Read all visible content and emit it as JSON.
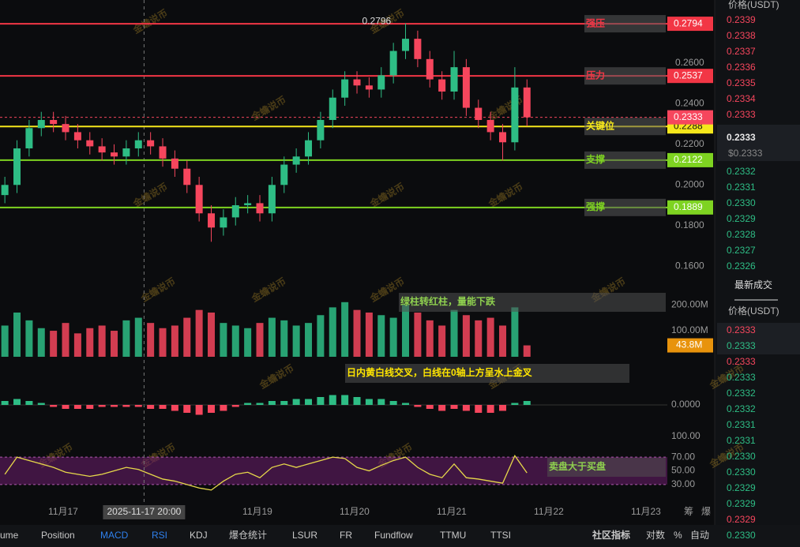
{
  "chart_data": [
    {
      "type": "candlestick",
      "x": [
        16.4,
        16.525,
        16.65,
        16.775,
        16.9,
        17.025,
        17.15,
        17.275,
        17.4,
        17.525,
        17.65,
        17.775,
        17.9,
        18.025,
        18.15,
        18.275,
        18.4,
        18.525,
        18.65,
        18.775,
        18.9,
        19.025,
        19.15,
        19.275,
        19.4,
        19.525,
        19.65,
        19.775,
        19.9,
        20.025,
        20.15,
        20.275,
        20.4,
        20.525,
        20.65,
        20.775,
        20.9,
        21.025,
        21.15,
        21.275,
        21.4,
        21.525,
        21.65,
        21.775
      ],
      "open": [
        0.195,
        0.2,
        0.218,
        0.228,
        0.232,
        0.23,
        0.226,
        0.222,
        0.219,
        0.216,
        0.214,
        0.218,
        0.222,
        0.219,
        0.213,
        0.208,
        0.2,
        0.186,
        0.179,
        0.184,
        0.19,
        0.191,
        0.186,
        0.2,
        0.21,
        0.214,
        0.222,
        0.232,
        0.243,
        0.252,
        0.249,
        0.247,
        0.254,
        0.266,
        0.272,
        0.262,
        0.252,
        0.246,
        0.258,
        0.238,
        0.232,
        0.226,
        0.221,
        0.248
      ],
      "high": [
        0.204,
        0.222,
        0.232,
        0.236,
        0.236,
        0.234,
        0.23,
        0.226,
        0.223,
        0.22,
        0.222,
        0.226,
        0.226,
        0.223,
        0.217,
        0.212,
        0.204,
        0.19,
        0.188,
        0.194,
        0.195,
        0.195,
        0.204,
        0.214,
        0.218,
        0.226,
        0.236,
        0.247,
        0.256,
        0.256,
        0.253,
        0.258,
        0.27,
        0.2796,
        0.276,
        0.266,
        0.256,
        0.266,
        0.262,
        0.242,
        0.236,
        0.23,
        0.258,
        0.252
      ],
      "low": [
        0.191,
        0.196,
        0.214,
        0.224,
        0.226,
        0.222,
        0.218,
        0.215,
        0.212,
        0.21,
        0.21,
        0.214,
        0.215,
        0.209,
        0.204,
        0.196,
        0.182,
        0.172,
        0.175,
        0.18,
        0.186,
        0.182,
        0.182,
        0.196,
        0.206,
        0.21,
        0.218,
        0.228,
        0.239,
        0.245,
        0.243,
        0.243,
        0.25,
        0.262,
        0.258,
        0.248,
        0.242,
        0.242,
        0.234,
        0.228,
        0.222,
        0.212,
        0.217,
        0.229
      ],
      "close": [
        0.2,
        0.218,
        0.228,
        0.232,
        0.23,
        0.226,
        0.222,
        0.219,
        0.216,
        0.214,
        0.218,
        0.222,
        0.219,
        0.213,
        0.208,
        0.2,
        0.186,
        0.179,
        0.184,
        0.19,
        0.191,
        0.186,
        0.2,
        0.21,
        0.214,
        0.222,
        0.232,
        0.243,
        0.252,
        0.249,
        0.247,
        0.254,
        0.266,
        0.272,
        0.262,
        0.252,
        0.246,
        0.258,
        0.238,
        0.232,
        0.226,
        0.221,
        0.248,
        0.2333
      ],
      "up_color": "#2ebd85",
      "down_color": "#f6465d",
      "xlim": [
        16.35,
        23.22
      ],
      "xticks": [
        {
          "value": 17,
          "label": "11月17"
        },
        {
          "value": 19,
          "label": "11月19"
        },
        {
          "value": 20,
          "label": "11月20"
        },
        {
          "value": 21,
          "label": "11月21"
        },
        {
          "value": 22,
          "label": "11月22"
        },
        {
          "value": 23,
          "label": "11月23"
        }
      ],
      "ylim": [
        0.155,
        0.2911
      ],
      "yticks": [
        {
          "value": 0.26,
          "label": "0.2600"
        },
        {
          "value": 0.24,
          "label": "0.2400"
        },
        {
          "value": 0.22,
          "label": "0.2200"
        },
        {
          "value": 0.2,
          "label": "0.2000"
        },
        {
          "value": 0.18,
          "label": "0.1800"
        },
        {
          "value": 0.16,
          "label": "0.1600"
        }
      ],
      "levels": [
        {
          "name": "强压",
          "value": 0.2794,
          "color": "#f23645"
        },
        {
          "name": "压力",
          "value": 0.2537,
          "color": "#f23645"
        },
        {
          "name": "关键位",
          "value": 0.2288,
          "color": "#f5e71b"
        },
        {
          "name": "支撑",
          "value": 0.2122,
          "color": "#7ed321"
        },
        {
          "name": "强撑",
          "value": 0.1889,
          "color": "#7ed321"
        }
      ],
      "last_price": 0.2333,
      "high_label": 0.2796,
      "crosshair": {
        "value": 17.833,
        "label": "2025-11-17 20:00"
      },
      "watermark": "金蟾说币",
      "side_labels": [
        "筹",
        "爆"
      ]
    },
    {
      "type": "bar",
      "values": [
        120000000,
        170000000,
        140000000,
        110000000,
        100000000,
        130000000,
        90000000,
        110000000,
        120000000,
        100000000,
        140000000,
        150000000,
        130000000,
        110000000,
        120000000,
        150000000,
        180000000,
        170000000,
        130000000,
        120000000,
        110000000,
        130000000,
        150000000,
        140000000,
        120000000,
        130000000,
        160000000,
        190000000,
        210000000,
        180000000,
        170000000,
        160000000,
        150000000,
        200000000,
        170000000,
        140000000,
        120000000,
        180000000,
        160000000,
        140000000,
        150000000,
        120000000,
        190000000,
        43800000
      ],
      "ylim": [
        0,
        264000000
      ],
      "yticks": [
        {
          "value": 200000000,
          "label": "200.00M"
        },
        {
          "value": 100000000,
          "label": "100.00M"
        }
      ],
      "current": {
        "value": 43800000,
        "label": "43.8M"
      },
      "annotation": "绿柱转红柱，量能下跌"
    },
    {
      "type": "bar",
      "values": [
        0.002,
        0.003,
        0.002,
        0.001,
        -0.001,
        -0.002,
        -0.002,
        -0.002,
        -0.001,
        -0.001,
        -0.001,
        -0.001,
        -0.002,
        -0.002,
        -0.003,
        -0.004,
        -0.005,
        -0.004,
        -0.003,
        -0.001,
        0.001,
        0.001,
        0.002,
        0.002,
        0.003,
        0.003,
        0.004,
        0.005,
        0.005,
        0.004,
        0.003,
        0.003,
        0.002,
        0.001,
        -0.001,
        -0.002,
        -0.003,
        -0.002,
        -0.003,
        -0.004,
        -0.004,
        -0.003,
        0.001,
        0.002
      ],
      "ylim": [
        -0.0128,
        0.0192
      ],
      "yticks": [
        {
          "value": 0,
          "label": "0.0000"
        }
      ],
      "annotation": "日内黄白线交叉，白线在0轴上方呈水上金叉"
    },
    {
      "type": "line",
      "values": [
        45,
        70,
        65,
        60,
        55,
        48,
        45,
        42,
        45,
        50,
        55,
        52,
        45,
        38,
        35,
        30,
        25,
        22,
        35,
        45,
        48,
        40,
        55,
        60,
        55,
        60,
        65,
        70,
        68,
        55,
        50,
        58,
        65,
        70,
        55,
        45,
        40,
        60,
        40,
        38,
        35,
        32,
        72,
        47
      ],
      "color": "#e6d84a",
      "ylim": [
        0,
        100
      ],
      "yticks": [
        {
          "value": 100,
          "label": "100.00"
        },
        {
          "value": 70,
          "label": "70.00"
        },
        {
          "value": 50,
          "label": "50.00"
        },
        {
          "value": 30,
          "label": "30.00"
        }
      ],
      "band": [
        30,
        70
      ],
      "annotation": "卖盘大于买盘"
    }
  ],
  "order_book": {
    "header": "价格(USDT)",
    "asks": [
      "0.2339",
      "0.2338",
      "0.2337",
      "0.2336",
      "0.2335",
      "0.2334",
      "0.2333"
    ],
    "last": "0.2333",
    "last_usd": "$0.2333",
    "bids": [
      "0.2332",
      "0.2331",
      "0.2330",
      "0.2329",
      "0.2328",
      "0.2327",
      "0.2326"
    ]
  },
  "trades": {
    "title": "最新成交",
    "header": "价格(USDT)",
    "rows": [
      {
        "price": "0.2333",
        "color": "#f6465d"
      },
      {
        "price": "0.2333",
        "color": "#2ebd85"
      },
      {
        "price": "0.2333",
        "color": "#f6465d"
      },
      {
        "price": "0.2333",
        "color": "#2ebd85"
      },
      {
        "price": "0.2332",
        "color": "#2ebd85"
      },
      {
        "price": "0.2332",
        "color": "#2ebd85"
      },
      {
        "price": "0.2331",
        "color": "#2ebd85"
      },
      {
        "price": "0.2331",
        "color": "#2ebd85"
      },
      {
        "price": "0.2330",
        "color": "#2ebd85"
      },
      {
        "price": "0.2330",
        "color": "#2ebd85"
      },
      {
        "price": "0.2329",
        "color": "#2ebd85"
      },
      {
        "price": "0.2329",
        "color": "#2ebd85"
      },
      {
        "price": "0.2329",
        "color": "#f6465d"
      },
      {
        "price": "0.2330",
        "color": "#2ebd85"
      }
    ]
  },
  "toolbar": [
    {
      "label": "ume",
      "active": false
    },
    {
      "label": "Position",
      "active": false
    },
    {
      "label": "MACD",
      "active": true
    },
    {
      "label": "RSI",
      "active": true
    },
    {
      "label": "KDJ",
      "active": false
    },
    {
      "label": "爆仓统计",
      "active": false
    },
    {
      "label": "LSUR",
      "active": false
    },
    {
      "label": "FR",
      "active": false
    },
    {
      "label": "Fundflow",
      "active": false
    },
    {
      "label": "TTMU",
      "active": false
    },
    {
      "label": "TTSI",
      "active": false
    },
    {
      "label": "社区指标",
      "active": false
    },
    {
      "label": "对数",
      "active": false
    },
    {
      "label": "%",
      "active": false
    },
    {
      "label": "自动",
      "active": false
    }
  ]
}
